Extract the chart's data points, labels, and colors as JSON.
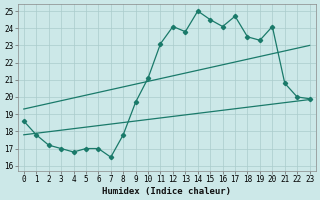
{
  "xlabel": "Humidex (Indice chaleur)",
  "bg_color": "#cce8e8",
  "grid_color": "#aacccc",
  "line_color": "#1a7a6a",
  "xlim": [
    -0.5,
    23.5
  ],
  "ylim": [
    15.7,
    25.4
  ],
  "yticks": [
    16,
    17,
    18,
    19,
    20,
    21,
    22,
    23,
    24,
    25
  ],
  "xticks": [
    0,
    1,
    2,
    3,
    4,
    5,
    6,
    7,
    8,
    9,
    10,
    11,
    12,
    13,
    14,
    15,
    16,
    17,
    18,
    19,
    20,
    21,
    22,
    23
  ],
  "line1_x": [
    0,
    1,
    2,
    3,
    4,
    5,
    6,
    7,
    8,
    9,
    10,
    11,
    12,
    13,
    14,
    15,
    16,
    17,
    18,
    19,
    20,
    21,
    22,
    23
  ],
  "line1_y": [
    18.6,
    17.8,
    17.2,
    17.0,
    16.8,
    17.0,
    17.0,
    16.5,
    17.8,
    19.7,
    21.1,
    23.1,
    24.1,
    23.8,
    25.0,
    24.5,
    24.1,
    24.7,
    23.5,
    23.3,
    24.1,
    20.8,
    20.0,
    19.9
  ],
  "line2_x": [
    0,
    23
  ],
  "line2_y": [
    17.8,
    19.85
  ],
  "line3_x": [
    0,
    23
  ],
  "line3_y": [
    19.3,
    23.0
  ],
  "tick_fontsize": 5.5,
  "xlabel_fontsize": 6.5,
  "marker_size": 2.2,
  "line_width": 0.9
}
